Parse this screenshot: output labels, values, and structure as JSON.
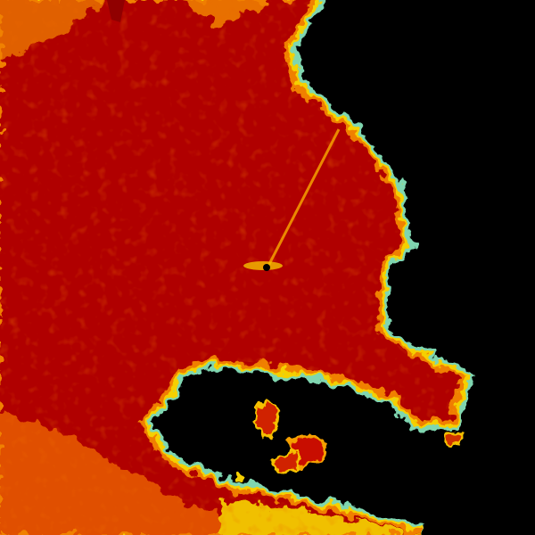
{
  "radar": {
    "background": "#000000",
    "colors": {
      "core": "#b00000",
      "strong": "#d42a00",
      "moderate": "#f08000",
      "light": "#f5d000",
      "weak": "#7fd6b0",
      "marker": "#000000"
    },
    "site_marker_icon": "radar-site-dot"
  }
}
